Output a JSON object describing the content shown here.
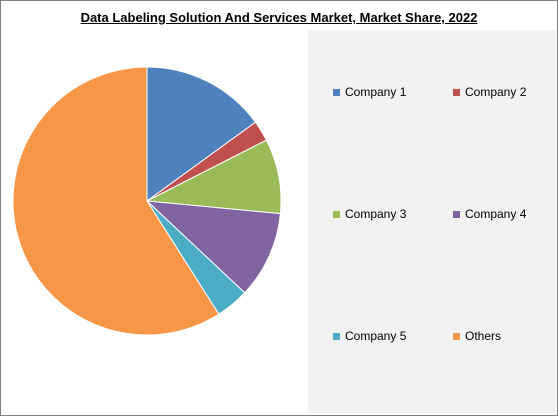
{
  "chart_data": {
    "type": "pie",
    "title": "Data Labeling Solution And Services Market, Market Share, 2022",
    "slices": [
      {
        "name": "Company 1",
        "value": 15,
        "color": "#4f81bd"
      },
      {
        "name": "Company 2",
        "value": 2.5,
        "color": "#c0504d"
      },
      {
        "name": "Company 3",
        "value": 9,
        "color": "#9bbb59"
      },
      {
        "name": "Company 4",
        "value": 10.5,
        "color": "#8064a2"
      },
      {
        "name": "Company 5",
        "value": 4,
        "color": "#4bacc6"
      },
      {
        "name": "Others",
        "value": 59,
        "color": "#f79646"
      }
    ],
    "legend_position": "right"
  }
}
